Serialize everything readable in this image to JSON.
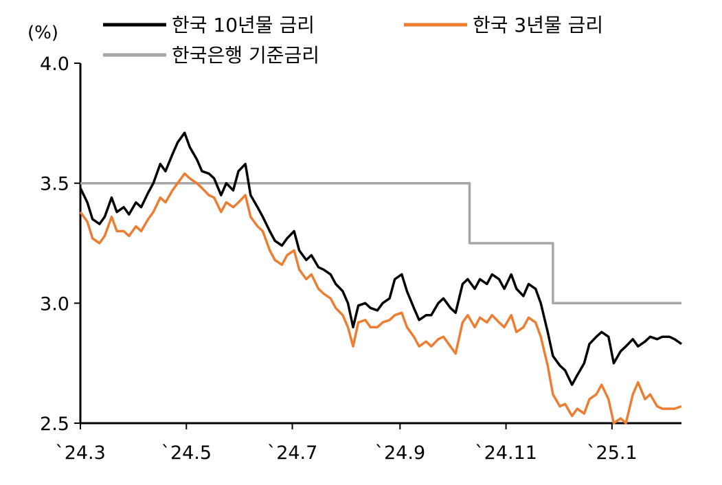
{
  "chart_data": {
    "type": "line",
    "unit_label": "(%)",
    "ylim": [
      2.5,
      4.0
    ],
    "y_ticks": [
      "4.0",
      "3.5",
      "3.0",
      "2.5"
    ],
    "x_range": [
      "2024-03-01",
      "2025-02-10"
    ],
    "x_ticks": [
      {
        "label": "`24.3",
        "date": "2024-03-01"
      },
      {
        "label": "`24.5",
        "date": "2024-05-01"
      },
      {
        "label": "`24.7",
        "date": "2024-07-01"
      },
      {
        "label": "`24.9",
        "date": "2024-09-01"
      },
      {
        "label": "`24.11",
        "date": "2024-11-01"
      },
      {
        "label": "`25.1",
        "date": "2025-01-01"
      }
    ],
    "grid": false,
    "legend_position": "top",
    "series": [
      {
        "name": "한국 10년물 금리",
        "color": "#000000",
        "points": [
          [
            "2024-03-01",
            3.48
          ],
          [
            "2024-03-05",
            3.42
          ],
          [
            "2024-03-08",
            3.35
          ],
          [
            "2024-03-12",
            3.33
          ],
          [
            "2024-03-15",
            3.36
          ],
          [
            "2024-03-19",
            3.44
          ],
          [
            "2024-03-22",
            3.38
          ],
          [
            "2024-03-26",
            3.4
          ],
          [
            "2024-03-29",
            3.37
          ],
          [
            "2024-04-02",
            3.42
          ],
          [
            "2024-04-05",
            3.4
          ],
          [
            "2024-04-09",
            3.46
          ],
          [
            "2024-04-12",
            3.5
          ],
          [
            "2024-04-16",
            3.58
          ],
          [
            "2024-04-19",
            3.55
          ],
          [
            "2024-04-23",
            3.62
          ],
          [
            "2024-04-26",
            3.67
          ],
          [
            "2024-04-30",
            3.71
          ],
          [
            "2024-05-03",
            3.65
          ],
          [
            "2024-05-07",
            3.6
          ],
          [
            "2024-05-10",
            3.55
          ],
          [
            "2024-05-14",
            3.54
          ],
          [
            "2024-05-17",
            3.52
          ],
          [
            "2024-05-21",
            3.45
          ],
          [
            "2024-05-24",
            3.5
          ],
          [
            "2024-05-28",
            3.47
          ],
          [
            "2024-05-31",
            3.55
          ],
          [
            "2024-06-04",
            3.58
          ],
          [
            "2024-06-07",
            3.45
          ],
          [
            "2024-06-11",
            3.4
          ],
          [
            "2024-06-14",
            3.36
          ],
          [
            "2024-06-18",
            3.3
          ],
          [
            "2024-06-21",
            3.26
          ],
          [
            "2024-06-25",
            3.24
          ],
          [
            "2024-06-28",
            3.27
          ],
          [
            "2024-07-02",
            3.3
          ],
          [
            "2024-07-05",
            3.22
          ],
          [
            "2024-07-09",
            3.18
          ],
          [
            "2024-07-12",
            3.2
          ],
          [
            "2024-07-16",
            3.15
          ],
          [
            "2024-07-19",
            3.14
          ],
          [
            "2024-07-23",
            3.12
          ],
          [
            "2024-07-26",
            3.08
          ],
          [
            "2024-07-30",
            3.05
          ],
          [
            "2024-08-02",
            3.0
          ],
          [
            "2024-08-05",
            2.9
          ],
          [
            "2024-08-08",
            2.99
          ],
          [
            "2024-08-12",
            3.0
          ],
          [
            "2024-08-15",
            2.98
          ],
          [
            "2024-08-19",
            2.97
          ],
          [
            "2024-08-22",
            3.0
          ],
          [
            "2024-08-26",
            3.02
          ],
          [
            "2024-08-29",
            3.1
          ],
          [
            "2024-09-02",
            3.12
          ],
          [
            "2024-09-05",
            3.05
          ],
          [
            "2024-09-09",
            2.98
          ],
          [
            "2024-09-12",
            2.93
          ],
          [
            "2024-09-16",
            2.95
          ],
          [
            "2024-09-19",
            2.95
          ],
          [
            "2024-09-23",
            3.0
          ],
          [
            "2024-09-26",
            3.02
          ],
          [
            "2024-09-30",
            2.98
          ],
          [
            "2024-10-03",
            2.96
          ],
          [
            "2024-10-07",
            3.08
          ],
          [
            "2024-10-10",
            3.1
          ],
          [
            "2024-10-14",
            3.06
          ],
          [
            "2024-10-17",
            3.1
          ],
          [
            "2024-10-21",
            3.08
          ],
          [
            "2024-10-24",
            3.12
          ],
          [
            "2024-10-28",
            3.1
          ],
          [
            "2024-10-31",
            3.06
          ],
          [
            "2024-11-04",
            3.12
          ],
          [
            "2024-11-07",
            3.06
          ],
          [
            "2024-11-11",
            3.03
          ],
          [
            "2024-11-14",
            3.08
          ],
          [
            "2024-11-18",
            3.06
          ],
          [
            "2024-11-21",
            3.0
          ],
          [
            "2024-11-25",
            2.88
          ],
          [
            "2024-11-28",
            2.78
          ],
          [
            "2024-12-02",
            2.74
          ],
          [
            "2024-12-05",
            2.72
          ],
          [
            "2024-12-09",
            2.66
          ],
          [
            "2024-12-12",
            2.7
          ],
          [
            "2024-12-16",
            2.75
          ],
          [
            "2024-12-19",
            2.83
          ],
          [
            "2024-12-23",
            2.86
          ],
          [
            "2024-12-26",
            2.88
          ],
          [
            "2024-12-30",
            2.86
          ],
          [
            "2025-01-02",
            2.75
          ],
          [
            "2025-01-06",
            2.8
          ],
          [
            "2025-01-09",
            2.82
          ],
          [
            "2025-01-13",
            2.85
          ],
          [
            "2025-01-16",
            2.82
          ],
          [
            "2025-01-20",
            2.84
          ],
          [
            "2025-01-23",
            2.86
          ],
          [
            "2025-01-27",
            2.85
          ],
          [
            "2025-01-30",
            2.86
          ],
          [
            "2025-02-03",
            2.86
          ],
          [
            "2025-02-06",
            2.85
          ],
          [
            "2025-02-10",
            2.83
          ]
        ]
      },
      {
        "name": "한국 3년물 금리",
        "color": "#ED7D31",
        "points": [
          [
            "2024-03-01",
            3.38
          ],
          [
            "2024-03-05",
            3.34
          ],
          [
            "2024-03-08",
            3.27
          ],
          [
            "2024-03-12",
            3.25
          ],
          [
            "2024-03-15",
            3.28
          ],
          [
            "2024-03-19",
            3.36
          ],
          [
            "2024-03-22",
            3.3
          ],
          [
            "2024-03-26",
            3.3
          ],
          [
            "2024-03-29",
            3.28
          ],
          [
            "2024-04-02",
            3.32
          ],
          [
            "2024-04-05",
            3.3
          ],
          [
            "2024-04-09",
            3.35
          ],
          [
            "2024-04-12",
            3.38
          ],
          [
            "2024-04-16",
            3.44
          ],
          [
            "2024-04-19",
            3.42
          ],
          [
            "2024-04-23",
            3.47
          ],
          [
            "2024-04-26",
            3.5
          ],
          [
            "2024-04-30",
            3.54
          ],
          [
            "2024-05-03",
            3.52
          ],
          [
            "2024-05-07",
            3.5
          ],
          [
            "2024-05-10",
            3.48
          ],
          [
            "2024-05-14",
            3.45
          ],
          [
            "2024-05-17",
            3.44
          ],
          [
            "2024-05-21",
            3.38
          ],
          [
            "2024-05-24",
            3.42
          ],
          [
            "2024-05-28",
            3.4
          ],
          [
            "2024-05-31",
            3.42
          ],
          [
            "2024-06-04",
            3.45
          ],
          [
            "2024-06-07",
            3.36
          ],
          [
            "2024-06-11",
            3.32
          ],
          [
            "2024-06-14",
            3.3
          ],
          [
            "2024-06-18",
            3.22
          ],
          [
            "2024-06-21",
            3.18
          ],
          [
            "2024-06-25",
            3.16
          ],
          [
            "2024-06-28",
            3.2
          ],
          [
            "2024-07-02",
            3.22
          ],
          [
            "2024-07-05",
            3.14
          ],
          [
            "2024-07-09",
            3.1
          ],
          [
            "2024-07-12",
            3.12
          ],
          [
            "2024-07-16",
            3.06
          ],
          [
            "2024-07-19",
            3.04
          ],
          [
            "2024-07-23",
            3.02
          ],
          [
            "2024-07-26",
            2.98
          ],
          [
            "2024-07-30",
            2.95
          ],
          [
            "2024-08-02",
            2.9
          ],
          [
            "2024-08-05",
            2.82
          ],
          [
            "2024-08-08",
            2.92
          ],
          [
            "2024-08-12",
            2.93
          ],
          [
            "2024-08-15",
            2.9
          ],
          [
            "2024-08-19",
            2.9
          ],
          [
            "2024-08-22",
            2.92
          ],
          [
            "2024-08-26",
            2.93
          ],
          [
            "2024-08-29",
            2.95
          ],
          [
            "2024-09-02",
            2.96
          ],
          [
            "2024-09-05",
            2.9
          ],
          [
            "2024-09-09",
            2.86
          ],
          [
            "2024-09-12",
            2.82
          ],
          [
            "2024-09-16",
            2.84
          ],
          [
            "2024-09-19",
            2.82
          ],
          [
            "2024-09-23",
            2.85
          ],
          [
            "2024-09-26",
            2.86
          ],
          [
            "2024-09-30",
            2.82
          ],
          [
            "2024-10-03",
            2.79
          ],
          [
            "2024-10-07",
            2.92
          ],
          [
            "2024-10-10",
            2.95
          ],
          [
            "2024-10-14",
            2.9
          ],
          [
            "2024-10-17",
            2.94
          ],
          [
            "2024-10-21",
            2.92
          ],
          [
            "2024-10-24",
            2.95
          ],
          [
            "2024-10-28",
            2.92
          ],
          [
            "2024-10-31",
            2.9
          ],
          [
            "2024-11-04",
            2.95
          ],
          [
            "2024-11-07",
            2.88
          ],
          [
            "2024-11-11",
            2.9
          ],
          [
            "2024-11-14",
            2.94
          ],
          [
            "2024-11-18",
            2.92
          ],
          [
            "2024-11-21",
            2.86
          ],
          [
            "2024-11-25",
            2.74
          ],
          [
            "2024-11-28",
            2.62
          ],
          [
            "2024-12-02",
            2.57
          ],
          [
            "2024-12-05",
            2.58
          ],
          [
            "2024-12-09",
            2.53
          ],
          [
            "2024-12-12",
            2.56
          ],
          [
            "2024-12-16",
            2.54
          ],
          [
            "2024-12-19",
            2.6
          ],
          [
            "2024-12-23",
            2.62
          ],
          [
            "2024-12-26",
            2.66
          ],
          [
            "2024-12-30",
            2.6
          ],
          [
            "2025-01-02",
            2.5
          ],
          [
            "2025-01-06",
            2.52
          ],
          [
            "2025-01-09",
            2.5
          ],
          [
            "2025-01-13",
            2.62
          ],
          [
            "2025-01-16",
            2.67
          ],
          [
            "2025-01-20",
            2.6
          ],
          [
            "2025-01-23",
            2.62
          ],
          [
            "2025-01-27",
            2.57
          ],
          [
            "2025-01-30",
            2.56
          ],
          [
            "2025-02-03",
            2.56
          ],
          [
            "2025-02-06",
            2.56
          ],
          [
            "2025-02-10",
            2.57
          ]
        ]
      },
      {
        "name": "한국은행 기준금리",
        "color": "#A6A6A6",
        "points": [
          [
            "2024-03-01",
            3.5
          ],
          [
            "2024-10-11",
            3.5
          ],
          [
            "2024-10-11",
            3.25
          ],
          [
            "2024-11-28",
            3.25
          ],
          [
            "2024-11-28",
            3.0
          ],
          [
            "2025-02-10",
            3.0
          ]
        ]
      }
    ]
  }
}
